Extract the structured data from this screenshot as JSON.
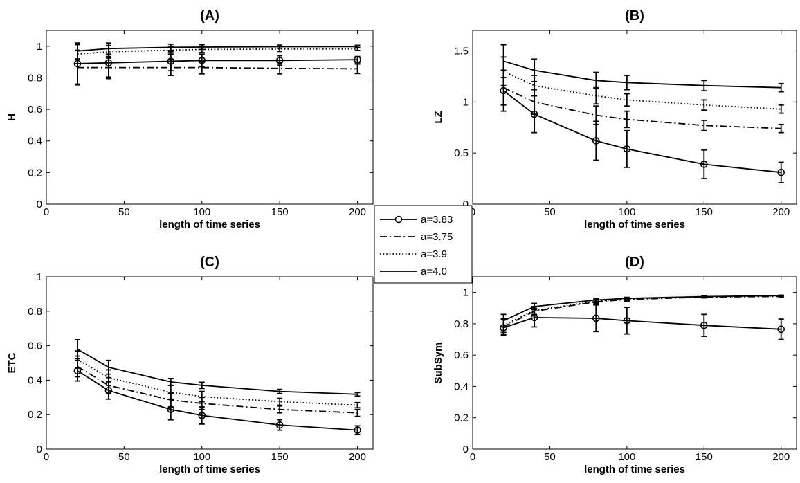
{
  "legend": [
    {
      "name": "a=3.83",
      "style": "solid-circle"
    },
    {
      "name": "a=3.75",
      "style": "dashdot"
    },
    {
      "name": "a=3.9",
      "style": "dotted"
    },
    {
      "name": "a=4.0",
      "style": "solid"
    }
  ],
  "chart_data": [
    {
      "type": "line",
      "title": "(A)",
      "xlabel": "length of time series",
      "ylabel": "H",
      "xlim": [
        0,
        210
      ],
      "ylim": [
        0,
        1.1
      ],
      "xticks": [
        0,
        50,
        100,
        150,
        200
      ],
      "yticks": [
        0,
        0.2,
        0.4,
        0.6,
        0.8,
        1
      ],
      "x": [
        20,
        40,
        80,
        100,
        150,
        200
      ],
      "series": [
        {
          "name": "a=3.83",
          "style": "solid-circle",
          "values": [
            0.89,
            0.895,
            0.905,
            0.91,
            0.91,
            0.915
          ],
          "errors": [
            0.13,
            0.09,
            0.06,
            0.04,
            0.03,
            0.02
          ]
        },
        {
          "name": "a=3.75",
          "style": "dashdot",
          "values": [
            0.865,
            0.865,
            0.865,
            0.865,
            0.86,
            0.857
          ],
          "errors": [
            0.11,
            0.07,
            0.05,
            0.04,
            0.035,
            0.03
          ]
        },
        {
          "name": "a=3.9",
          "style": "dotted",
          "values": [
            0.95,
            0.965,
            0.975,
            0.98,
            0.982,
            0.983
          ],
          "errors": [
            0.06,
            0.04,
            0.025,
            0.02,
            0.015,
            0.01
          ]
        },
        {
          "name": "a=4.0",
          "style": "solid",
          "values": [
            0.97,
            0.985,
            0.993,
            0.995,
            0.997,
            0.998
          ],
          "errors": [
            0.05,
            0.035,
            0.02,
            0.015,
            0.01,
            0.008
          ]
        }
      ]
    },
    {
      "type": "line",
      "title": "(B)",
      "xlabel": "length of time series",
      "ylabel": "LZ",
      "xlim": [
        0,
        210
      ],
      "ylim": [
        0,
        1.7
      ],
      "xticks": [
        0,
        50,
        100,
        150,
        200
      ],
      "yticks": [
        0,
        0.5,
        1,
        1.5
      ],
      "x": [
        20,
        40,
        80,
        100,
        150,
        200
      ],
      "series": [
        {
          "name": "a=3.83",
          "style": "solid-circle",
          "values": [
            1.11,
            0.88,
            0.62,
            0.54,
            0.39,
            0.31
          ],
          "errors": [
            0.2,
            0.18,
            0.19,
            0.18,
            0.14,
            0.1
          ]
        },
        {
          "name": "a=3.75",
          "style": "dashdot",
          "values": [
            1.14,
            1.0,
            0.87,
            0.83,
            0.77,
            0.74
          ],
          "errors": [
            0.17,
            0.12,
            0.09,
            0.08,
            0.05,
            0.04
          ]
        },
        {
          "name": "a=3.9",
          "style": "dotted",
          "values": [
            1.3,
            1.16,
            1.06,
            1.02,
            0.97,
            0.93
          ],
          "errors": [
            0.14,
            0.1,
            0.08,
            0.06,
            0.05,
            0.04
          ]
        },
        {
          "name": "a=4.0",
          "style": "solid",
          "values": [
            1.4,
            1.31,
            1.21,
            1.19,
            1.16,
            1.14
          ],
          "errors": [
            0.16,
            0.11,
            0.08,
            0.07,
            0.05,
            0.04
          ]
        }
      ]
    },
    {
      "type": "line",
      "title": "(C)",
      "xlabel": "length of time series",
      "ylabel": "ETC",
      "xlim": [
        0,
        210
      ],
      "ylim": [
        0,
        1
      ],
      "xticks": [
        0,
        50,
        100,
        150,
        200
      ],
      "yticks": [
        0,
        0.2,
        0.4,
        0.6,
        0.8,
        1
      ],
      "x": [
        20,
        40,
        80,
        100,
        150,
        200
      ],
      "series": [
        {
          "name": "a=3.83",
          "style": "solid-circle",
          "values": [
            0.455,
            0.34,
            0.23,
            0.195,
            0.14,
            0.11
          ],
          "errors": [
            0.06,
            0.05,
            0.06,
            0.05,
            0.03,
            0.025
          ]
        },
        {
          "name": "a=3.75",
          "style": "dashdot",
          "values": [
            0.48,
            0.37,
            0.285,
            0.265,
            0.23,
            0.21
          ],
          "errors": [
            0.06,
            0.045,
            0.04,
            0.035,
            0.02,
            0.02
          ]
        },
        {
          "name": "a=3.9",
          "style": "dotted",
          "values": [
            0.52,
            0.415,
            0.33,
            0.305,
            0.275,
            0.255
          ],
          "errors": [
            0.05,
            0.045,
            0.04,
            0.03,
            0.02,
            0.015
          ]
        },
        {
          "name": "a=4.0",
          "style": "solid",
          "values": [
            0.58,
            0.475,
            0.39,
            0.37,
            0.335,
            0.318
          ],
          "errors": [
            0.055,
            0.04,
            0.02,
            0.018,
            0.012,
            0.01
          ]
        }
      ]
    },
    {
      "type": "line",
      "title": "(D)",
      "xlabel": "length of time series",
      "ylabel": "SubSym",
      "xlim": [
        0,
        210
      ],
      "ylim": [
        0,
        1.1
      ],
      "xticks": [
        0,
        50,
        100,
        150,
        200
      ],
      "yticks": [
        0,
        0.2,
        0.4,
        0.6,
        0.8,
        1
      ],
      "x": [
        20,
        40,
        80,
        100,
        150,
        200
      ],
      "series": [
        {
          "name": "a=3.83",
          "style": "solid-circle",
          "values": [
            0.775,
            0.84,
            0.835,
            0.82,
            0.79,
            0.765
          ],
          "errors": [
            0.05,
            0.06,
            0.085,
            0.085,
            0.07,
            0.065
          ]
        },
        {
          "name": "a=3.75",
          "style": "dashdot",
          "values": [
            0.78,
            0.88,
            0.94,
            0.955,
            0.97,
            0.975
          ],
          "errors": [
            0.05,
            0.03,
            0.012,
            0.01,
            0.005,
            0.004
          ]
        },
        {
          "name": "a=3.9",
          "style": "dotted",
          "values": [
            0.79,
            0.885,
            0.945,
            0.958,
            0.972,
            0.978
          ],
          "errors": [
            0.045,
            0.025,
            0.01,
            0.008,
            0.005,
            0.004
          ]
        },
        {
          "name": "a=4.0",
          "style": "solid",
          "values": [
            0.82,
            0.91,
            0.952,
            0.962,
            0.974,
            0.98
          ],
          "errors": [
            0.04,
            0.02,
            0.01,
            0.007,
            0.005,
            0.003
          ]
        }
      ]
    }
  ]
}
